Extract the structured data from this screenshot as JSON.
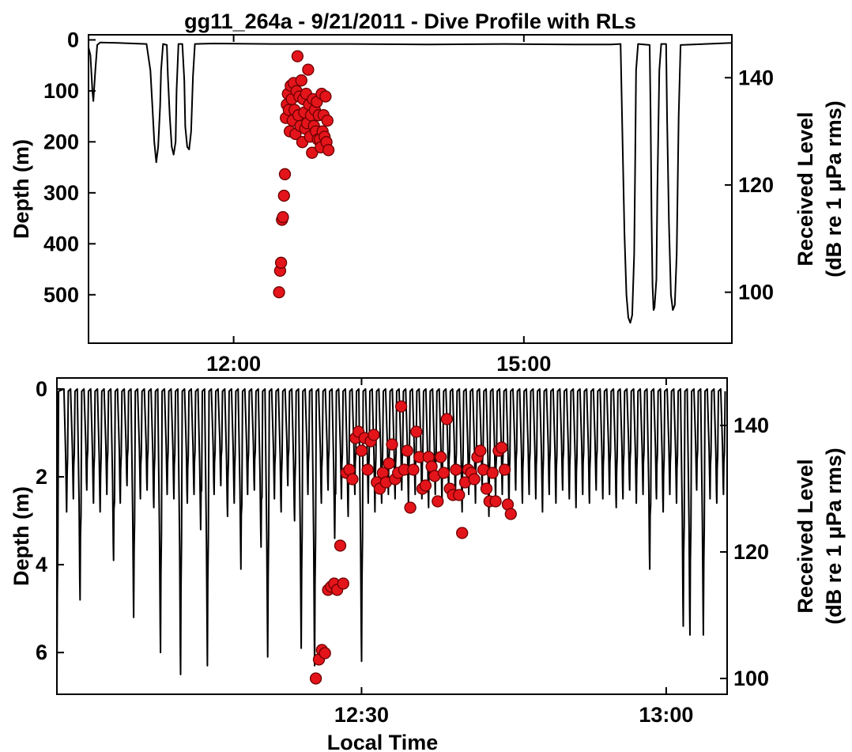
{
  "figure": {
    "title": "gg11_264a - 9/21/2011 - Dive Profile with RLs",
    "shared_xlabel": "Local Time"
  },
  "colors": {
    "depth_line": "#000000",
    "rl_marker_fill": "#e4141b",
    "rl_marker_edge": "#6a0000",
    "axes": "#000000",
    "background": "#ffffff"
  },
  "chart_data": [
    {
      "type": "line",
      "panel": "top",
      "title": "gg11_264a - 9/21/2011 - Dive Profile with RLs",
      "xlabel": "",
      "ylabel": "Depth (m)",
      "y2label_line1": "Received Level",
      "y2label_line2": "(dB re 1 μPa rms)",
      "x_units": "hours (local time)",
      "xlim": [
        10.5,
        17.15
      ],
      "ylim": [
        -10,
        595
      ],
      "y_inverted": true,
      "y2lim": [
        90.5,
        148.0
      ],
      "x_ticks": [
        12.0,
        15.0
      ],
      "x_tick_labels": [
        "12:00",
        "15:00"
      ],
      "y_ticks": [
        0,
        100,
        200,
        300,
        400,
        500
      ],
      "y_tick_labels": [
        "0",
        "100",
        "200",
        "300",
        "400",
        "500"
      ],
      "y2_ticks": [
        100,
        120,
        140
      ],
      "y2_tick_labels": [
        "100",
        "120",
        "140"
      ],
      "grid": false,
      "series": [
        {
          "kind": "line",
          "axis": "left",
          "points": [
            [
              10.5,
              15
            ],
            [
              10.52,
              30
            ],
            [
              10.54,
              100
            ],
            [
              10.55,
              120
            ],
            [
              10.57,
              60
            ],
            [
              10.59,
              10
            ],
            [
              10.62,
              5
            ],
            [
              10.8,
              6
            ],
            [
              11.1,
              8
            ],
            [
              11.14,
              60
            ],
            [
              11.16,
              130
            ],
            [
              11.18,
              200
            ],
            [
              11.2,
              240
            ],
            [
              11.22,
              210
            ],
            [
              11.24,
              130
            ],
            [
              11.25,
              60
            ],
            [
              11.27,
              8
            ],
            [
              11.31,
              10
            ],
            [
              11.32,
              70
            ],
            [
              11.34,
              150
            ],
            [
              11.36,
              210
            ],
            [
              11.38,
              225
            ],
            [
              11.4,
              200
            ],
            [
              11.41,
              100
            ],
            [
              11.43,
              8
            ],
            [
              11.47,
              8
            ],
            [
              11.49,
              80
            ],
            [
              11.5,
              170
            ],
            [
              11.52,
              210
            ],
            [
              11.54,
              215
            ],
            [
              11.56,
              180
            ],
            [
              11.58,
              70
            ],
            [
              11.6,
              8
            ],
            [
              11.8,
              7
            ],
            [
              12.4,
              8
            ],
            [
              13.2,
              8
            ],
            [
              14.0,
              9
            ],
            [
              14.8,
              8
            ],
            [
              15.5,
              9
            ],
            [
              15.9,
              9
            ],
            [
              16.0,
              8
            ],
            [
              16.02,
              200
            ],
            [
              16.04,
              380
            ],
            [
              16.06,
              500
            ],
            [
              16.08,
              545
            ],
            [
              16.1,
              555
            ],
            [
              16.12,
              540
            ],
            [
              16.14,
              420
            ],
            [
              16.15,
              250
            ],
            [
              16.16,
              60
            ],
            [
              16.18,
              8
            ],
            [
              16.3,
              10
            ],
            [
              16.31,
              150
            ],
            [
              16.32,
              350
            ],
            [
              16.33,
              480
            ],
            [
              16.34,
              530
            ],
            [
              16.35,
              525
            ],
            [
              16.37,
              470
            ],
            [
              16.38,
              300
            ],
            [
              16.4,
              60
            ],
            [
              16.42,
              8
            ],
            [
              16.47,
              8
            ],
            [
              16.48,
              150
            ],
            [
              16.5,
              360
            ],
            [
              16.52,
              500
            ],
            [
              16.54,
              530
            ],
            [
              16.56,
              520
            ],
            [
              16.58,
              420
            ],
            [
              16.6,
              150
            ],
            [
              16.62,
              10
            ],
            [
              17.0,
              7
            ],
            [
              17.15,
              6
            ]
          ]
        },
        {
          "kind": "scatter",
          "axis": "right",
          "points": [
            [
              12.47,
              100
            ],
            [
              12.48,
              104
            ],
            [
              12.49,
              105.5
            ],
            [
              12.5,
              113.5
            ],
            [
              12.51,
              114
            ],
            [
              12.52,
              118
            ],
            [
              12.53,
              122
            ],
            [
              12.54,
              132.5
            ],
            [
              12.55,
              135
            ],
            [
              12.56,
              137
            ],
            [
              12.57,
              134
            ],
            [
              12.58,
              130
            ],
            [
              12.59,
              138.5
            ],
            [
              12.6,
              136
            ],
            [
              12.61,
              132
            ],
            [
              12.62,
              139
            ],
            [
              12.63,
              134
            ],
            [
              12.64,
              129.5
            ],
            [
              12.65,
              137.5
            ],
            [
              12.66,
              144
            ],
            [
              12.67,
              133
            ],
            [
              12.68,
              136.5
            ],
            [
              12.69,
              131
            ],
            [
              12.7,
              139.5
            ],
            [
              12.71,
              128
            ],
            [
              12.72,
              136
            ],
            [
              12.73,
              133.5
            ],
            [
              12.74,
              130.5
            ],
            [
              12.75,
              137
            ],
            [
              12.76,
              131.5
            ],
            [
              12.77,
              141.5
            ],
            [
              12.78,
              135
            ],
            [
              12.79,
              129
            ],
            [
              12.8,
              133
            ],
            [
              12.81,
              126
            ],
            [
              12.82,
              136
            ],
            [
              12.83,
              131
            ],
            [
              12.84,
              134
            ],
            [
              12.85,
              130
            ],
            [
              12.86,
              135.5
            ],
            [
              12.87,
              128.5
            ],
            [
              12.88,
              133
            ],
            [
              12.89,
              128.5
            ],
            [
              12.9,
              127
            ],
            [
              12.91,
              137
            ],
            [
              12.92,
              130
            ],
            [
              12.93,
              133
            ],
            [
              12.94,
              129
            ],
            [
              12.95,
              136.5
            ],
            [
              12.96,
              128
            ],
            [
              12.97,
              132
            ],
            [
              12.98,
              126.5
            ]
          ]
        }
      ]
    },
    {
      "type": "line",
      "panel": "bottom",
      "title": "",
      "xlabel": "Local Time",
      "ylabel": "Depth (m)",
      "y2label_line1": "Received Level",
      "y2label_line2": "(dB re 1 μPa rms)",
      "x_units": "hours (local time)",
      "xlim": [
        12.0,
        13.1
      ],
      "ylim": [
        -0.25,
        6.95
      ],
      "y_inverted": true,
      "y2lim": [
        97.5,
        147.5
      ],
      "x_ticks": [
        12.5,
        13.0
      ],
      "x_tick_labels": [
        "12:30",
        "13:00"
      ],
      "y_ticks": [
        0,
        2,
        4,
        6
      ],
      "y_tick_labels": [
        "0",
        "2",
        "4",
        "6"
      ],
      "y2_ticks": [
        100,
        120,
        140
      ],
      "y2_tick_labels": [
        "100",
        "120",
        "140"
      ],
      "grid": false,
      "series": [
        {
          "kind": "line",
          "axis": "left",
          "dive_minima_x": [
            12.0,
            12.016,
            12.027,
            12.038,
            12.049,
            12.06,
            12.071,
            12.082,
            12.093,
            12.104,
            12.115,
            12.126,
            12.137,
            12.148,
            12.159,
            12.17,
            12.181,
            12.192,
            12.203,
            12.214,
            12.225,
            12.236,
            12.247,
            12.258,
            12.269,
            12.28,
            12.291,
            12.302,
            12.313,
            12.324,
            12.335,
            12.346,
            12.357,
            12.368,
            12.379,
            12.39,
            12.401,
            12.412,
            12.423,
            12.434,
            12.445,
            12.456,
            12.467,
            12.478,
            12.489,
            12.5,
            12.511,
            12.522,
            12.533,
            12.544,
            12.555,
            12.566,
            12.577,
            12.588,
            12.599,
            12.61,
            12.621,
            12.632,
            12.643,
            12.654,
            12.665,
            12.676,
            12.687,
            12.698,
            12.709,
            12.72,
            12.731,
            12.742,
            12.753,
            12.764,
            12.775,
            12.786,
            12.797,
            12.808,
            12.819,
            12.83,
            12.841,
            12.852,
            12.863,
            12.874,
            12.885,
            12.896,
            12.907,
            12.918,
            12.929,
            12.94,
            12.951,
            12.962,
            12.973,
            12.984,
            12.995,
            13.006,
            13.017,
            13.028,
            13.039,
            13.05,
            13.061,
            13.072,
            13.083,
            13.094
          ],
          "dive_minima_depth": [
            6.7,
            2.8,
            2.5,
            4.8,
            2.3,
            2.6,
            2.8,
            2.4,
            3.9,
            2.6,
            2.2,
            5.2,
            2.5,
            2.3,
            2.7,
            6.0,
            2.4,
            2.5,
            6.5,
            2.6,
            2.4,
            3.2,
            6.3,
            2.4,
            2.2,
            2.9,
            2.6,
            4.1,
            2.4,
            2.3,
            3.6,
            6.1,
            2.5,
            2.8,
            2.2,
            3.0,
            5.9,
            2.4,
            6.3,
            2.6,
            2.3,
            3.4,
            2.5,
            2.9,
            2.4,
            6.2,
            2.6,
            2.8,
            2.6,
            2.4,
            2.5,
            2.3,
            2.6,
            2.4,
            2.5,
            2.7,
            2.4,
            2.6,
            2.3,
            2.5,
            2.8,
            2.4,
            2.6,
            2.3,
            2.9,
            2.5,
            2.4,
            2.7,
            2.3,
            2.6,
            2.4,
            2.5,
            2.8,
            2.4,
            2.6,
            2.3,
            2.5,
            2.7,
            2.4,
            2.6,
            2.3,
            2.5,
            2.4,
            2.7,
            2.5,
            2.3,
            2.6,
            2.4,
            4.1,
            2.5,
            2.8,
            2.4,
            2.6,
            5.4,
            5.6,
            2.3,
            5.6,
            2.5,
            2.6,
            2.4
          ],
          "surface_depth": 0
        },
        {
          "kind": "scatter",
          "axis": "right",
          "points": [
            [
              12.425,
              100
            ],
            [
              12.43,
              103
            ],
            [
              12.435,
              104.5
            ],
            [
              12.44,
              104
            ],
            [
              12.445,
              114
            ],
            [
              12.45,
              114.5
            ],
            [
              12.455,
              115
            ],
            [
              12.46,
              114
            ],
            [
              12.465,
              121
            ],
            [
              12.47,
              115
            ],
            [
              12.475,
              132.5
            ],
            [
              12.48,
              133
            ],
            [
              12.485,
              131.5
            ],
            [
              12.49,
              138
            ],
            [
              12.495,
              139
            ],
            [
              12.5,
              136
            ],
            [
              12.505,
              138
            ],
            [
              12.51,
              133
            ],
            [
              12.515,
              137.5
            ],
            [
              12.52,
              138.5
            ],
            [
              12.525,
              131
            ],
            [
              12.53,
              130
            ],
            [
              12.535,
              132.5
            ],
            [
              12.54,
              131
            ],
            [
              12.545,
              134
            ],
            [
              12.55,
              137
            ],
            [
              12.555,
              131.5
            ],
            [
              12.56,
              132.5
            ],
            [
              12.565,
              143
            ],
            [
              12.57,
              133
            ],
            [
              12.575,
              136
            ],
            [
              12.58,
              127
            ],
            [
              12.585,
              133
            ],
            [
              12.59,
              139
            ],
            [
              12.595,
              135
            ],
            [
              12.6,
              130
            ],
            [
              12.605,
              130.5
            ],
            [
              12.61,
              135
            ],
            [
              12.615,
              133.5
            ],
            [
              12.62,
              132
            ],
            [
              12.625,
              128
            ],
            [
              12.63,
              135
            ],
            [
              12.635,
              132.5
            ],
            [
              12.64,
              141
            ],
            [
              12.645,
              130
            ],
            [
              12.65,
              129
            ],
            [
              12.655,
              133
            ],
            [
              12.66,
              129
            ],
            [
              12.665,
              123
            ],
            [
              12.67,
              131
            ],
            [
              12.675,
              133
            ],
            [
              12.68,
              132.5
            ],
            [
              12.685,
              131.5
            ],
            [
              12.69,
              135
            ],
            [
              12.695,
              136
            ],
            [
              12.7,
              133
            ],
            [
              12.705,
              130
            ],
            [
              12.71,
              128
            ],
            [
              12.715,
              132.5
            ],
            [
              12.72,
              128
            ],
            [
              12.725,
              136
            ],
            [
              12.73,
              136.5
            ],
            [
              12.735,
              133
            ],
            [
              12.74,
              127.5
            ],
            [
              12.745,
              126
            ]
          ]
        }
      ]
    }
  ]
}
